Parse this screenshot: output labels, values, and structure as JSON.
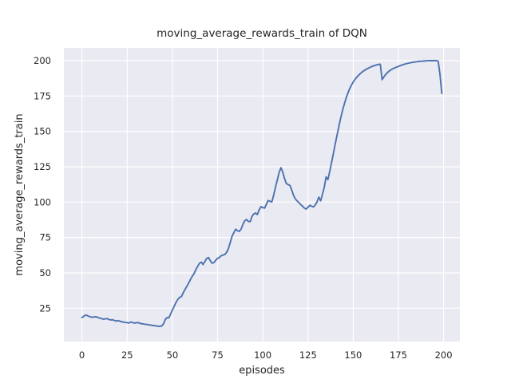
{
  "chart_data": {
    "type": "line",
    "title": "moving_average_rewards_train of DQN",
    "xlabel": "episodes",
    "ylabel": "moving_average_rewards_train",
    "xlim": [
      -10,
      209
    ],
    "ylim": [
      1.5,
      209
    ],
    "xticks": [
      0,
      25,
      50,
      75,
      100,
      125,
      150,
      175,
      200
    ],
    "yticks": [
      25,
      50,
      75,
      100,
      125,
      150,
      175,
      200
    ],
    "grid": true,
    "legend": "none",
    "style": "seaborn-darkgrid",
    "colors": {
      "line": "#4C72B0",
      "plot_bg": "#EAEAF2",
      "grid": "#FFFFFF",
      "text": "#262626",
      "figure_bg": "#FFFFFF"
    },
    "series": [
      {
        "name": "moving_average_rewards_train",
        "points": [
          [
            0,
            18.5
          ],
          [
            1,
            19.3
          ],
          [
            2,
            20.2
          ],
          [
            3,
            19.8
          ],
          [
            4,
            19.2
          ],
          [
            5,
            18.8
          ],
          [
            6,
            18.6
          ],
          [
            7,
            18.9
          ],
          [
            8,
            19.0
          ],
          [
            9,
            18.3
          ],
          [
            10,
            18.0
          ],
          [
            11,
            17.6
          ],
          [
            12,
            17.3
          ],
          [
            13,
            17.5
          ],
          [
            14,
            17.7
          ],
          [
            15,
            17.0
          ],
          [
            16,
            16.7
          ],
          [
            17,
            16.9
          ],
          [
            18,
            16.3
          ],
          [
            19,
            16.0
          ],
          [
            20,
            16.3
          ],
          [
            21,
            15.9
          ],
          [
            22,
            15.5
          ],
          [
            23,
            15.2
          ],
          [
            24,
            15.0
          ],
          [
            25,
            14.8
          ],
          [
            26,
            14.6
          ],
          [
            27,
            15.2
          ],
          [
            28,
            14.9
          ],
          [
            29,
            14.5
          ],
          [
            30,
            14.7
          ],
          [
            31,
            14.9
          ],
          [
            32,
            14.4
          ],
          [
            33,
            14.1
          ],
          [
            34,
            13.9
          ],
          [
            35,
            13.7
          ],
          [
            36,
            13.5
          ],
          [
            37,
            13.3
          ],
          [
            38,
            13.1
          ],
          [
            39,
            12.9
          ],
          [
            40,
            12.7
          ],
          [
            41,
            12.5
          ],
          [
            42,
            12.3
          ],
          [
            43,
            12.2
          ],
          [
            44,
            12.4
          ],
          [
            45,
            13.8
          ],
          [
            46,
            16.8
          ],
          [
            47,
            18.4
          ],
          [
            48,
            18.2
          ],
          [
            49,
            20.8
          ],
          [
            50,
            23.8
          ],
          [
            51,
            26.4
          ],
          [
            52,
            29.0
          ],
          [
            53,
            31.2
          ],
          [
            54,
            32.6
          ],
          [
            55,
            33.2
          ],
          [
            56,
            36.0
          ],
          [
            57,
            38.2
          ],
          [
            58,
            40.5
          ],
          [
            59,
            42.8
          ],
          [
            60,
            45.3
          ],
          [
            61,
            47.6
          ],
          [
            62,
            49.5
          ],
          [
            63,
            52.3
          ],
          [
            64,
            54.6
          ],
          [
            65,
            56.8
          ],
          [
            66,
            57.6
          ],
          [
            67,
            55.9
          ],
          [
            68,
            58.1
          ],
          [
            69,
            60.2
          ],
          [
            70,
            60.9
          ],
          [
            71,
            58.4
          ],
          [
            72,
            56.8
          ],
          [
            73,
            57.3
          ],
          [
            74,
            58.9
          ],
          [
            75,
            60.3
          ],
          [
            76,
            60.9
          ],
          [
            77,
            62.1
          ],
          [
            78,
            62.5
          ],
          [
            79,
            63.0
          ],
          [
            80,
            64.5
          ],
          [
            81,
            67.2
          ],
          [
            82,
            71.5
          ],
          [
            83,
            75.8
          ],
          [
            84,
            78.4
          ],
          [
            85,
            80.9
          ],
          [
            86,
            79.8
          ],
          [
            87,
            79.3
          ],
          [
            88,
            80.9
          ],
          [
            89,
            84.2
          ],
          [
            90,
            86.8
          ],
          [
            91,
            87.7
          ],
          [
            92,
            86.4
          ],
          [
            93,
            86.2
          ],
          [
            94,
            89.8
          ],
          [
            95,
            91.6
          ],
          [
            96,
            92.3
          ],
          [
            97,
            91.2
          ],
          [
            98,
            94.6
          ],
          [
            99,
            96.8
          ],
          [
            100,
            96.2
          ],
          [
            101,
            95.7
          ],
          [
            102,
            98.6
          ],
          [
            103,
            101.2
          ],
          [
            104,
            100.5
          ],
          [
            105,
            100.2
          ],
          [
            106,
            104.8
          ],
          [
            107,
            110.5
          ],
          [
            108,
            115.6
          ],
          [
            109,
            120.8
          ],
          [
            110,
            124.3
          ],
          [
            111,
            121.5
          ],
          [
            112,
            116.8
          ],
          [
            113,
            113.2
          ],
          [
            114,
            112.4
          ],
          [
            115,
            111.8
          ],
          [
            116,
            108.5
          ],
          [
            117,
            104.8
          ],
          [
            118,
            102.3
          ],
          [
            119,
            100.8
          ],
          [
            120,
            99.6
          ],
          [
            121,
            98.2
          ],
          [
            122,
            97.0
          ],
          [
            123,
            95.8
          ],
          [
            124,
            95.1
          ],
          [
            125,
            96.4
          ],
          [
            126,
            97.8
          ],
          [
            127,
            97.1
          ],
          [
            128,
            96.6
          ],
          [
            129,
            97.9
          ],
          [
            130,
            100.2
          ],
          [
            131,
            103.5
          ],
          [
            132,
            100.9
          ],
          [
            133,
            105.6
          ],
          [
            134,
            110.4
          ],
          [
            135,
            117.8
          ],
          [
            136,
            115.9
          ],
          [
            137,
            121.5
          ],
          [
            138,
            127.8
          ],
          [
            139,
            134.2
          ],
          [
            140,
            140.6
          ],
          [
            141,
            147.0
          ],
          [
            142,
            153.2
          ],
          [
            143,
            159.0
          ],
          [
            144,
            164.3
          ],
          [
            145,
            169.0
          ],
          [
            146,
            173.2
          ],
          [
            147,
            176.8
          ],
          [
            148,
            180.0
          ],
          [
            149,
            182.6
          ],
          [
            150,
            184.9
          ],
          [
            151,
            186.7
          ],
          [
            152,
            188.3
          ],
          [
            153,
            189.7
          ],
          [
            154,
            190.9
          ],
          [
            155,
            192.0
          ],
          [
            156,
            192.9
          ],
          [
            157,
            193.7
          ],
          [
            158,
            194.4
          ],
          [
            159,
            195.1
          ],
          [
            160,
            195.7
          ],
          [
            161,
            196.2
          ],
          [
            162,
            196.6
          ],
          [
            163,
            197.0
          ],
          [
            164,
            197.3
          ],
          [
            165,
            197.5
          ],
          [
            166,
            186.5
          ],
          [
            167,
            188.6
          ],
          [
            168,
            190.3
          ],
          [
            169,
            191.6
          ],
          [
            170,
            192.7
          ],
          [
            171,
            193.6
          ],
          [
            172,
            194.3
          ],
          [
            173,
            194.9
          ],
          [
            174,
            195.4
          ],
          [
            175,
            195.9
          ],
          [
            176,
            196.4
          ],
          [
            177,
            196.9
          ],
          [
            178,
            197.3
          ],
          [
            179,
            197.7
          ],
          [
            180,
            198.0
          ],
          [
            181,
            198.3
          ],
          [
            182,
            198.6
          ],
          [
            183,
            198.8
          ],
          [
            184,
            199.0
          ],
          [
            185,
            199.2
          ],
          [
            186,
            199.4
          ],
          [
            187,
            199.5
          ],
          [
            188,
            199.6
          ],
          [
            189,
            199.7
          ],
          [
            190,
            199.8
          ],
          [
            191,
            199.9
          ],
          [
            192,
            199.9
          ],
          [
            193,
            200.0
          ],
          [
            194,
            200.0
          ],
          [
            195,
            200.0
          ],
          [
            196,
            200.0
          ],
          [
            197,
            199.6
          ],
          [
            198,
            190.0
          ],
          [
            199,
            176.8
          ]
        ]
      }
    ]
  }
}
